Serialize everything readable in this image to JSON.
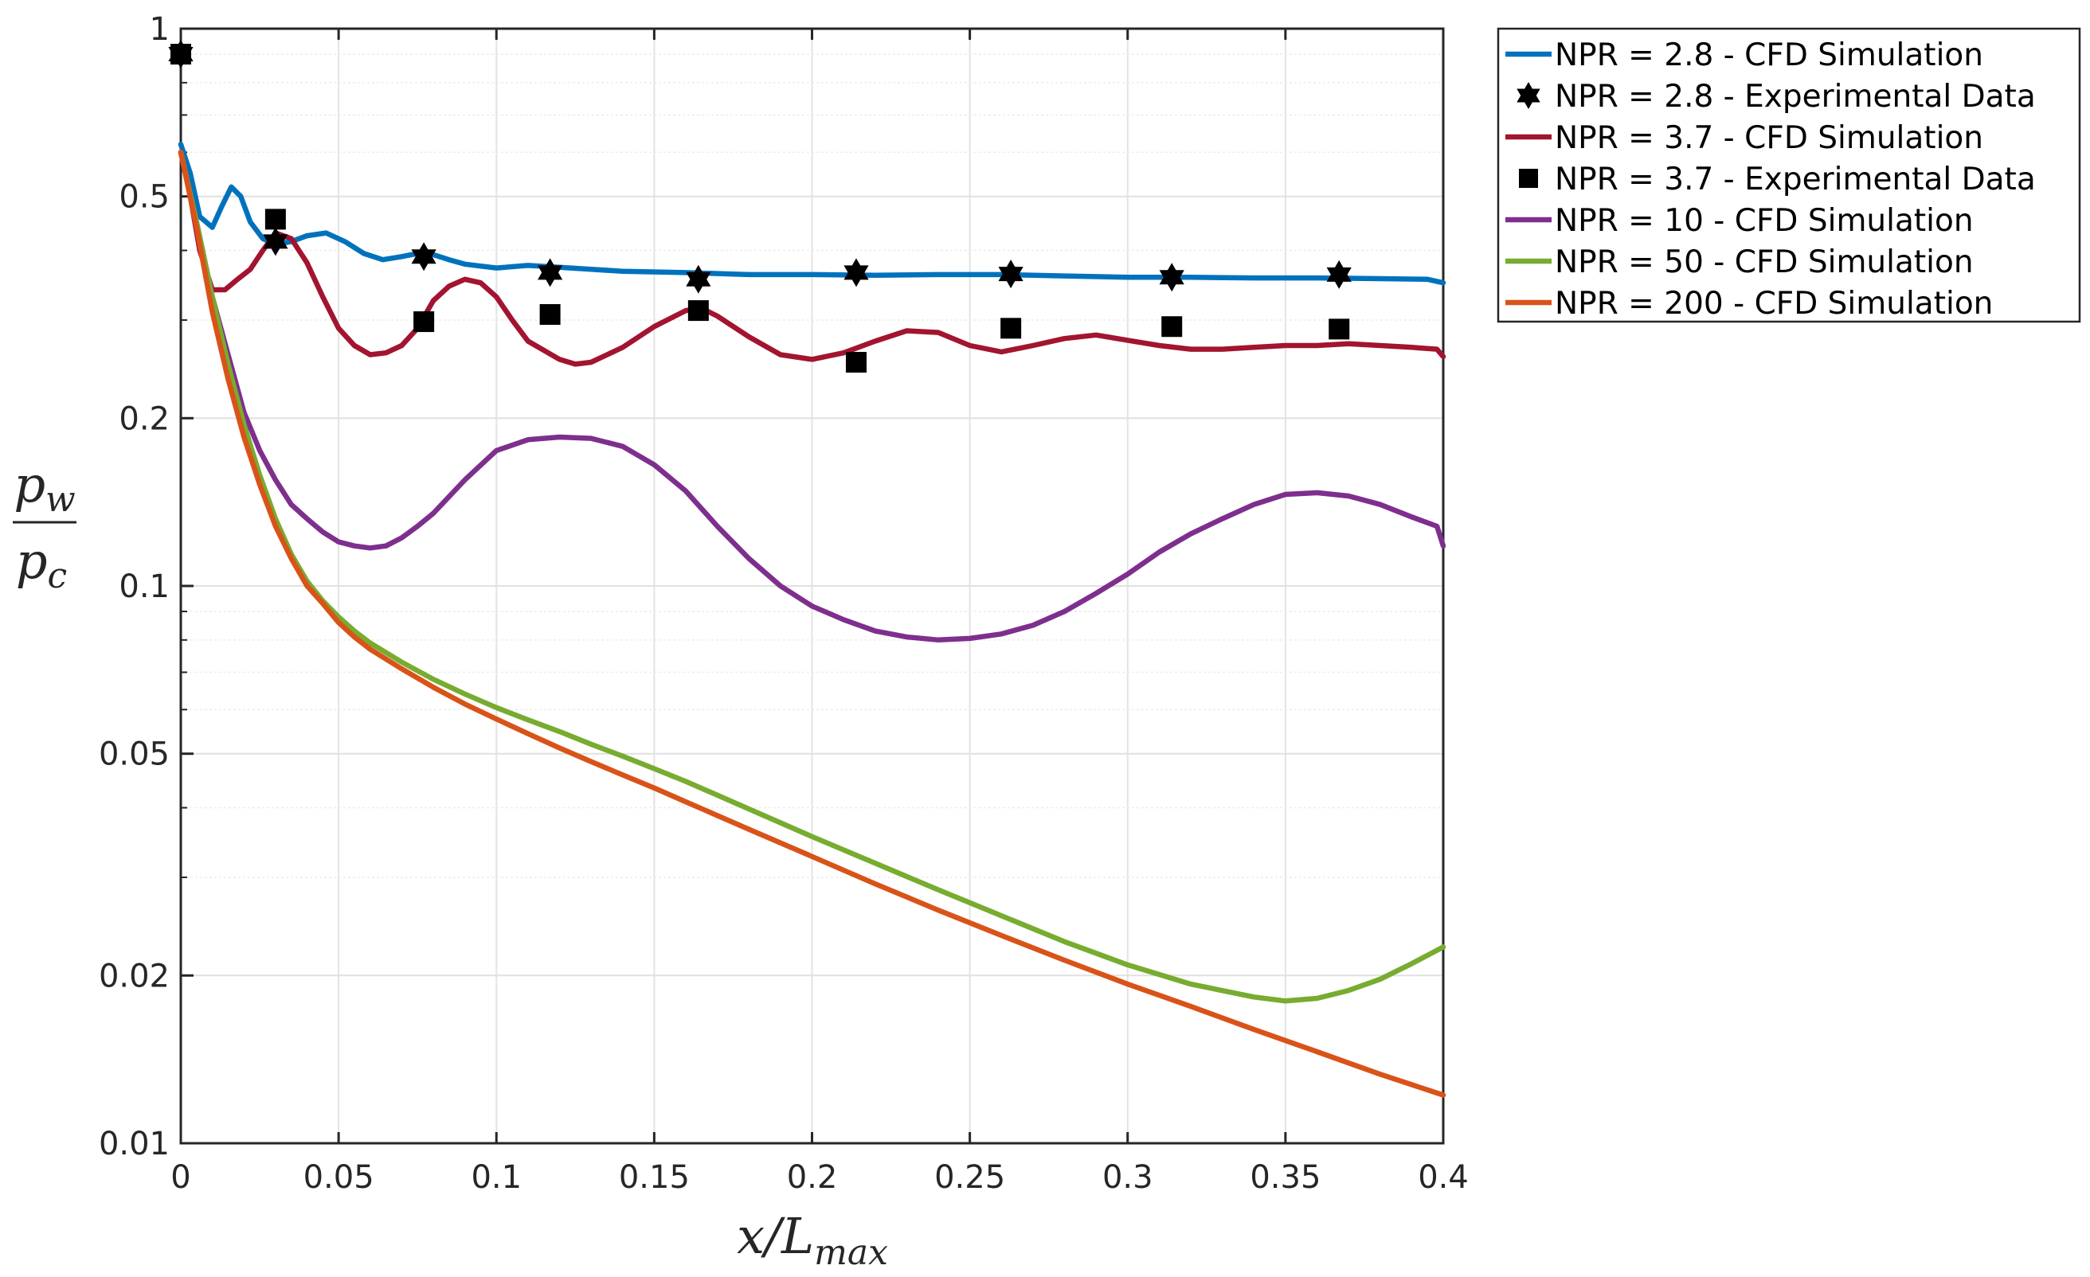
{
  "chart_data": {
    "type": "line",
    "title": "",
    "xlabel": "x/L_max",
    "ylabel": "p_w / p_c",
    "x_scale": "linear",
    "y_scale": "log",
    "xlim": [
      0,
      0.4
    ],
    "ylim": [
      0.01,
      1
    ],
    "x_ticks": [
      0,
      0.05,
      0.1,
      0.15,
      0.2,
      0.25,
      0.3,
      0.35,
      0.4
    ],
    "x_tick_labels": [
      "0",
      "0.05",
      "0.1",
      "0.15",
      "0.2",
      "0.25",
      "0.3",
      "0.35",
      "0.4"
    ],
    "y_ticks": [
      0.01,
      0.02,
      0.05,
      0.1,
      0.2,
      0.5,
      1
    ],
    "y_tick_labels": [
      "0.01",
      "0.02",
      "0.05",
      "0.1",
      "0.2",
      "0.5",
      "1"
    ],
    "grid": true,
    "legend_position": "outside-top-right",
    "series": [
      {
        "name": "NPR = 2.8 - CFD Simulation",
        "kind": "line",
        "color": "#0072BD",
        "x": [
          0,
          0.003,
          0.006,
          0.01,
          0.013,
          0.016,
          0.019,
          0.022,
          0.026,
          0.03,
          0.035,
          0.04,
          0.046,
          0.052,
          0.058,
          0.064,
          0.07,
          0.075,
          0.08,
          0.085,
          0.09,
          0.1,
          0.11,
          0.12,
          0.13,
          0.14,
          0.16,
          0.18,
          0.2,
          0.22,
          0.24,
          0.26,
          0.28,
          0.3,
          0.32,
          0.34,
          0.36,
          0.38,
          0.395,
          0.4
        ],
        "y": [
          0.62,
          0.55,
          0.46,
          0.44,
          0.48,
          0.52,
          0.5,
          0.45,
          0.42,
          0.41,
          0.415,
          0.425,
          0.43,
          0.415,
          0.395,
          0.385,
          0.39,
          0.395,
          0.393,
          0.385,
          0.378,
          0.372,
          0.376,
          0.373,
          0.37,
          0.367,
          0.365,
          0.362,
          0.362,
          0.361,
          0.362,
          0.362,
          0.36,
          0.358,
          0.358,
          0.357,
          0.357,
          0.356,
          0.355,
          0.35
        ]
      },
      {
        "name": "NPR = 2.8 - Experimental Data",
        "kind": "marker",
        "marker": "hexagram",
        "color": "#000000",
        "x": [
          0,
          0.03,
          0.077,
          0.117,
          0.164,
          0.214,
          0.263,
          0.314,
          0.367
        ],
        "y": [
          0.9,
          0.415,
          0.39,
          0.365,
          0.355,
          0.365,
          0.363,
          0.358,
          0.362
        ]
      },
      {
        "name": "NPR = 3.7 - CFD Simulation",
        "kind": "line",
        "color": "#A2142F",
        "x": [
          0,
          0.003,
          0.006,
          0.01,
          0.014,
          0.018,
          0.022,
          0.026,
          0.03,
          0.035,
          0.04,
          0.045,
          0.05,
          0.055,
          0.06,
          0.065,
          0.07,
          0.075,
          0.08,
          0.085,
          0.09,
          0.095,
          0.1,
          0.105,
          0.11,
          0.12,
          0.125,
          0.13,
          0.14,
          0.15,
          0.16,
          0.165,
          0.17,
          0.18,
          0.19,
          0.2,
          0.21,
          0.22,
          0.23,
          0.24,
          0.25,
          0.26,
          0.27,
          0.28,
          0.29,
          0.3,
          0.31,
          0.32,
          0.33,
          0.34,
          0.35,
          0.36,
          0.37,
          0.38,
          0.39,
          0.398,
          0.4
        ],
        "y": [
          0.6,
          0.5,
          0.4,
          0.34,
          0.34,
          0.355,
          0.37,
          0.4,
          0.43,
          0.42,
          0.38,
          0.33,
          0.29,
          0.27,
          0.26,
          0.262,
          0.27,
          0.29,
          0.325,
          0.345,
          0.355,
          0.35,
          0.33,
          0.3,
          0.275,
          0.255,
          0.25,
          0.252,
          0.268,
          0.292,
          0.312,
          0.315,
          0.305,
          0.28,
          0.26,
          0.255,
          0.262,
          0.275,
          0.287,
          0.285,
          0.27,
          0.263,
          0.27,
          0.278,
          0.282,
          0.276,
          0.27,
          0.266,
          0.266,
          0.268,
          0.27,
          0.27,
          0.272,
          0.27,
          0.268,
          0.266,
          0.258
        ]
      },
      {
        "name": "NPR = 3.7 - Experimental Data",
        "kind": "marker",
        "marker": "square",
        "color": "#000000",
        "x": [
          0,
          0.03,
          0.077,
          0.117,
          0.164,
          0.214,
          0.263,
          0.314,
          0.367
        ],
        "y": [
          0.9,
          0.455,
          0.298,
          0.307,
          0.312,
          0.252,
          0.29,
          0.292,
          0.289
        ]
      },
      {
        "name": "NPR = 10 - CFD Simulation",
        "kind": "line",
        "color": "#7E2F8E",
        "x": [
          0,
          0.005,
          0.01,
          0.015,
          0.02,
          0.025,
          0.03,
          0.035,
          0.04,
          0.045,
          0.05,
          0.055,
          0.06,
          0.065,
          0.07,
          0.075,
          0.08,
          0.09,
          0.1,
          0.11,
          0.12,
          0.13,
          0.14,
          0.15,
          0.16,
          0.17,
          0.18,
          0.19,
          0.2,
          0.21,
          0.22,
          0.23,
          0.24,
          0.25,
          0.26,
          0.27,
          0.28,
          0.29,
          0.3,
          0.31,
          0.32,
          0.33,
          0.34,
          0.35,
          0.36,
          0.37,
          0.38,
          0.39,
          0.398,
          0.4
        ],
        "y": [
          0.6,
          0.45,
          0.33,
          0.26,
          0.205,
          0.175,
          0.155,
          0.14,
          0.132,
          0.125,
          0.12,
          0.118,
          0.117,
          0.118,
          0.122,
          0.128,
          0.135,
          0.155,
          0.175,
          0.183,
          0.185,
          0.184,
          0.178,
          0.165,
          0.148,
          0.128,
          0.112,
          0.1,
          0.092,
          0.087,
          0.083,
          0.081,
          0.08,
          0.0805,
          0.082,
          0.085,
          0.09,
          0.097,
          0.105,
          0.115,
          0.124,
          0.132,
          0.14,
          0.146,
          0.147,
          0.145,
          0.14,
          0.133,
          0.128,
          0.118
        ]
      },
      {
        "name": "NPR = 50 - CFD Simulation",
        "kind": "line",
        "color": "#77AC30",
        "x": [
          0,
          0.005,
          0.01,
          0.015,
          0.02,
          0.025,
          0.03,
          0.035,
          0.04,
          0.045,
          0.05,
          0.055,
          0.06,
          0.07,
          0.08,
          0.09,
          0.1,
          0.11,
          0.12,
          0.13,
          0.14,
          0.15,
          0.16,
          0.18,
          0.2,
          0.22,
          0.24,
          0.26,
          0.28,
          0.3,
          0.32,
          0.34,
          0.35,
          0.36,
          0.37,
          0.38,
          0.39,
          0.4
        ],
        "y": [
          0.6,
          0.45,
          0.33,
          0.25,
          0.195,
          0.158,
          0.132,
          0.114,
          0.102,
          0.094,
          0.088,
          0.083,
          0.079,
          0.073,
          0.068,
          0.064,
          0.0605,
          0.0575,
          0.0548,
          0.052,
          0.0495,
          0.047,
          0.0446,
          0.0398,
          0.0355,
          0.0318,
          0.0285,
          0.0256,
          0.023,
          0.0209,
          0.0193,
          0.0183,
          0.018,
          0.0182,
          0.0188,
          0.0197,
          0.021,
          0.0225
        ]
      },
      {
        "name": "NPR = 200 - CFD Simulation",
        "kind": "line",
        "color": "#D95319",
        "x": [
          0,
          0.005,
          0.01,
          0.015,
          0.02,
          0.025,
          0.03,
          0.035,
          0.04,
          0.045,
          0.05,
          0.055,
          0.06,
          0.07,
          0.08,
          0.09,
          0.1,
          0.11,
          0.12,
          0.13,
          0.14,
          0.15,
          0.16,
          0.18,
          0.2,
          0.22,
          0.24,
          0.26,
          0.28,
          0.3,
          0.32,
          0.34,
          0.36,
          0.38,
          0.4
        ],
        "y": [
          0.6,
          0.44,
          0.31,
          0.235,
          0.185,
          0.152,
          0.128,
          0.112,
          0.1,
          0.093,
          0.086,
          0.081,
          0.077,
          0.071,
          0.0658,
          0.0614,
          0.0577,
          0.0543,
          0.0512,
          0.0484,
          0.0458,
          0.0434,
          0.041,
          0.0366,
          0.0327,
          0.0292,
          0.0262,
          0.0236,
          0.0213,
          0.0193,
          0.0176,
          0.016,
          0.0146,
          0.0133,
          0.0122
        ]
      }
    ]
  }
}
